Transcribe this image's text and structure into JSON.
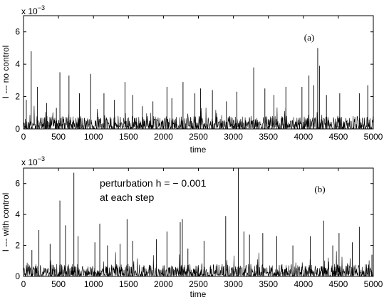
{
  "chart_data": [
    {
      "type": "line",
      "panel_label": "(a)",
      "xlabel": "time",
      "ylabel": "I --- no control",
      "y_multiplier_label": "x 10",
      "y_multiplier_exp": "−3",
      "xlim": [
        0,
        5000
      ],
      "ylim": [
        0,
        7
      ],
      "x_ticks": [
        0,
        500,
        1000,
        1500,
        2000,
        2500,
        3000,
        3500,
        4000,
        4500,
        5000
      ],
      "y_ticks": [
        0,
        2,
        4,
        6
      ],
      "y_tick_labels": [
        "0",
        "2",
        "4",
        "6"
      ],
      "baseline_max": 0.8,
      "spikes": [
        {
          "x": 40,
          "y": 1.8
        },
        {
          "x": 110,
          "y": 4.8
        },
        {
          "x": 200,
          "y": 2.6
        },
        {
          "x": 330,
          "y": 1.6
        },
        {
          "x": 470,
          "y": 1.3
        },
        {
          "x": 520,
          "y": 3.5
        },
        {
          "x": 650,
          "y": 3.3
        },
        {
          "x": 800,
          "y": 2.2
        },
        {
          "x": 960,
          "y": 3.4
        },
        {
          "x": 1150,
          "y": 2.2
        },
        {
          "x": 1300,
          "y": 1.8
        },
        {
          "x": 1450,
          "y": 2.9
        },
        {
          "x": 1560,
          "y": 2.1
        },
        {
          "x": 1700,
          "y": 1.4
        },
        {
          "x": 1850,
          "y": 1.7
        },
        {
          "x": 2050,
          "y": 2.6
        },
        {
          "x": 2120,
          "y": 1.9
        },
        {
          "x": 2280,
          "y": 2.9
        },
        {
          "x": 2450,
          "y": 2.2
        },
        {
          "x": 2530,
          "y": 2.5
        },
        {
          "x": 2700,
          "y": 2.4
        },
        {
          "x": 2900,
          "y": 1.7
        },
        {
          "x": 3050,
          "y": 2.3
        },
        {
          "x": 3290,
          "y": 3.8
        },
        {
          "x": 3450,
          "y": 2.5
        },
        {
          "x": 3580,
          "y": 2.1
        },
        {
          "x": 3750,
          "y": 2.6
        },
        {
          "x": 3980,
          "y": 2.6
        },
        {
          "x": 4080,
          "y": 3.3
        },
        {
          "x": 4150,
          "y": 2.7
        },
        {
          "x": 4205,
          "y": 5.0
        },
        {
          "x": 4230,
          "y": 3.9
        },
        {
          "x": 4330,
          "y": 2.1
        },
        {
          "x": 4520,
          "y": 2.2
        },
        {
          "x": 4800,
          "y": 2.2
        },
        {
          "x": 4920,
          "y": 2.7
        }
      ]
    },
    {
      "type": "line",
      "panel_label": "(b)",
      "annotation_lines": [
        "perturbation h = − 0.001",
        "at each step"
      ],
      "xlabel": "time",
      "ylabel": "I --- with control",
      "y_multiplier_label": "x 10",
      "y_multiplier_exp": "−3",
      "xlim": [
        0,
        5000
      ],
      "ylim": [
        0,
        7
      ],
      "x_ticks": [
        0,
        500,
        1000,
        1500,
        2000,
        2500,
        3000,
        3500,
        4000,
        4500,
        5000
      ],
      "y_ticks": [
        0,
        2,
        4,
        6
      ],
      "y_tick_labels": [
        "0",
        "2",
        "4",
        "6"
      ],
      "baseline_max": 0.8,
      "spikes": [
        {
          "x": 120,
          "y": 1.7
        },
        {
          "x": 220,
          "y": 3.0
        },
        {
          "x": 380,
          "y": 2.1
        },
        {
          "x": 520,
          "y": 4.9
        },
        {
          "x": 600,
          "y": 3.3
        },
        {
          "x": 720,
          "y": 6.7
        },
        {
          "x": 780,
          "y": 2.6
        },
        {
          "x": 1020,
          "y": 2.2
        },
        {
          "x": 1090,
          "y": 3.4
        },
        {
          "x": 1200,
          "y": 2.0
        },
        {
          "x": 1380,
          "y": 2.1
        },
        {
          "x": 1480,
          "y": 3.7
        },
        {
          "x": 1560,
          "y": 2.3
        },
        {
          "x": 1900,
          "y": 2.4
        },
        {
          "x": 2050,
          "y": 2.9
        },
        {
          "x": 2240,
          "y": 3.5
        },
        {
          "x": 2270,
          "y": 3.7
        },
        {
          "x": 2350,
          "y": 1.8
        },
        {
          "x": 2580,
          "y": 2.3
        },
        {
          "x": 2890,
          "y": 3.9
        },
        {
          "x": 3070,
          "y": 7.0
        },
        {
          "x": 3150,
          "y": 2.9
        },
        {
          "x": 3230,
          "y": 2.7
        },
        {
          "x": 3420,
          "y": 2.8
        },
        {
          "x": 3620,
          "y": 2.6
        },
        {
          "x": 3850,
          "y": 2.0
        },
        {
          "x": 4100,
          "y": 2.6
        },
        {
          "x": 4290,
          "y": 3.6
        },
        {
          "x": 4420,
          "y": 2.0
        },
        {
          "x": 4510,
          "y": 2.8
        },
        {
          "x": 4700,
          "y": 2.2
        },
        {
          "x": 4800,
          "y": 3.2
        },
        {
          "x": 4980,
          "y": 1.4
        }
      ]
    }
  ]
}
